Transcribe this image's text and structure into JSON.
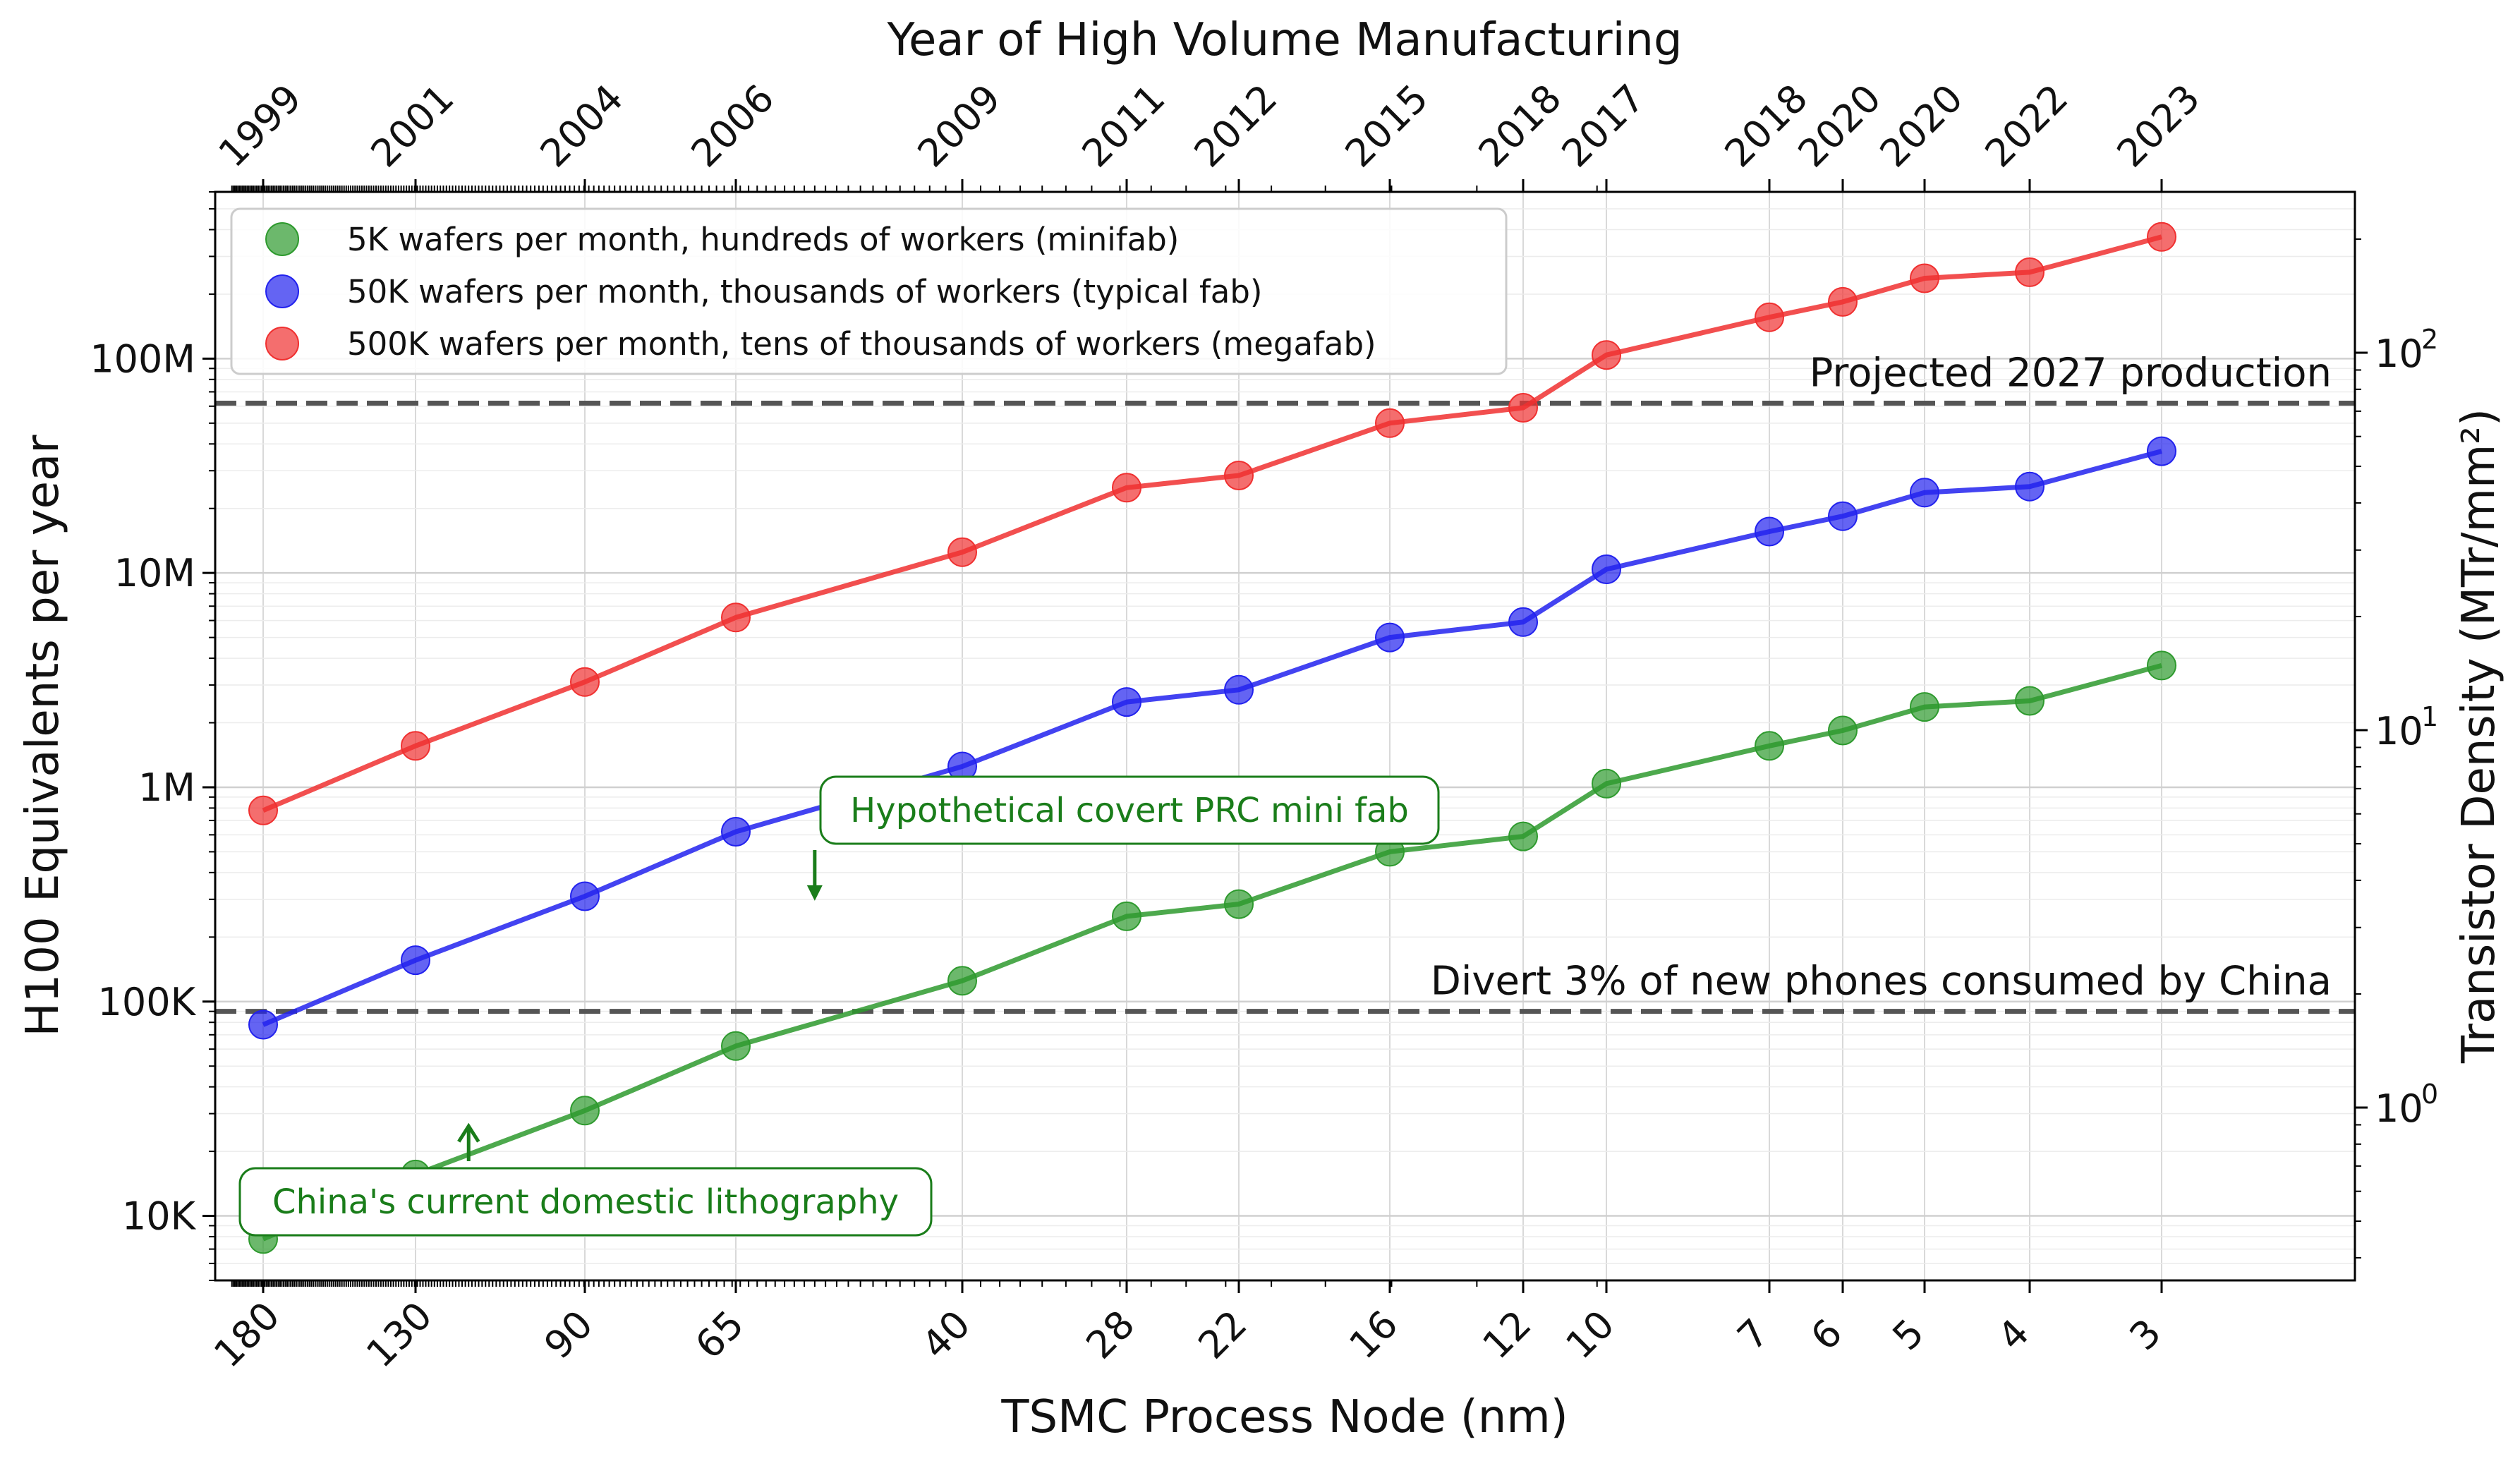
{
  "chart_data": {
    "type": "line",
    "top_xlabel": "Year of High Volume Manufacturing",
    "xlabel": "TSMC Process Node (nm)",
    "ylabel": "H100 Equivalents per year",
    "ylabel_right": "Transistor Density (MTr/mm²)",
    "x": [
      180,
      130,
      90,
      65,
      40,
      28,
      22,
      16,
      12,
      10,
      7,
      6,
      5,
      4,
      3
    ],
    "x_tick_labels": [
      "180",
      "130",
      "90",
      "65",
      "40",
      "28",
      "22",
      "16",
      "12",
      "10",
      "7",
      "6",
      "5",
      "4",
      "3"
    ],
    "years": [
      "1999",
      "2001",
      "2004",
      "2006",
      "2009",
      "2011",
      "2012",
      "2015",
      "2018",
      "2017",
      "2018",
      "2020",
      "2020",
      "2022",
      "2023"
    ],
    "x_scale": "log (reversed)",
    "y_scale": "log",
    "ylim": [
      5000,
      600000000
    ],
    "y_ticks": [
      10000,
      100000,
      1000000,
      10000000,
      100000000
    ],
    "y_tick_labels": [
      "10K",
      "100K",
      "1M",
      "10M",
      "100M"
    ],
    "y2_scale": "log",
    "y2_ticks": [
      1,
      10,
      100
    ],
    "y2_tick_labels": [
      "10",
      "10",
      "10"
    ],
    "y2_tick_exponents": [
      "0",
      "1",
      "2"
    ],
    "grid": true,
    "legend_position": "top-left",
    "series": [
      {
        "name": "5K wafers per month, hundreds of workers (minifab)",
        "color": "#2e9a2e",
        "values": [
          7800,
          15600,
          31000,
          62000,
          125000,
          250000,
          285000,
          500000,
          590000,
          1040000,
          1560000,
          1840000,
          2370000,
          2530000,
          3700000
        ]
      },
      {
        "name": "50K wafers per month, thousands of workers (typical fab)",
        "color": "#2222ee",
        "values": [
          78000,
          156000,
          310000,
          620000,
          1250000,
          2500000,
          2850000,
          5000000,
          5900000,
          10400000,
          15600000,
          18400000,
          23700000,
          25300000,
          37000000
        ]
      },
      {
        "name": "500K wafers per month, tens of thousands of workers (megafab)",
        "color": "#f03030",
        "values": [
          780000,
          1560000,
          3100000,
          6200000,
          12500000,
          25000000,
          28500000,
          50000000,
          59000000,
          104000000,
          156000000,
          184000000,
          237000000,
          253000000,
          370000000
        ]
      }
    ],
    "reference_lines": [
      {
        "label": "Projected 2027 production",
        "value": 62000000
      },
      {
        "label": "Divert 3% of new phones consumed by China",
        "value": 90000
      }
    ],
    "annotations": [
      {
        "text": "Hypothetical covert PRC mini fab",
        "x": 28,
        "y": 250000
      },
      {
        "text": "China's current domestic lithography",
        "x": 90,
        "y": 31000
      }
    ],
    "colors": {
      "reference_line": "#555555",
      "annotation": "#1a7d1a"
    }
  }
}
